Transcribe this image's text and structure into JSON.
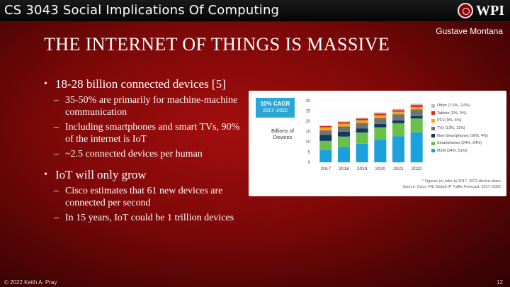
{
  "header": {
    "course_title": "CS 3043 Social Implications Of Computing",
    "logo_text": "WPI"
  },
  "author": "Gustave Montana",
  "slide_title": "THE INTERNET OF THINGS IS MASSIVE",
  "bullets": [
    {
      "text": "18-28 billion connected devices [5]",
      "sub": [
        "35-50% are primarily for machine-machine communication",
        "Including smartphones and smart TVs, 90% of the internet is IoT",
        "~2.5 connected devices per human"
      ]
    },
    {
      "text": "IoT will only grow",
      "sub": [
        "Cisco estimates that 61 new devices are connected per second",
        "In 15 years, IoT could be 1 trillion devices"
      ]
    }
  ],
  "chart_data": {
    "type": "bar",
    "stacked": true,
    "badge": {
      "line1": "10% CAGR",
      "line2": "2017–2022"
    },
    "ylabel": "Billions of Devices",
    "ylim": [
      0,
      30
    ],
    "yticks": [
      0,
      5,
      10,
      15,
      20,
      25,
      30
    ],
    "categories": [
      "2017",
      "2018",
      "2019",
      "2020",
      "2021",
      "2022"
    ],
    "series": [
      {
        "name": "M2M (34%, 51%)",
        "color": "#1ba1dd",
        "values": [
          6.1,
          7.5,
          9.0,
          11.0,
          12.6,
          14.6
        ]
      },
      {
        "name": "Smartphones (24%, 24%)",
        "color": "#6cc04a",
        "values": [
          4.3,
          5.0,
          5.5,
          6.0,
          6.4,
          6.7
        ]
      },
      {
        "name": "Non-Smartphones (16%, 4%)",
        "color": "#0e3a5e",
        "values": [
          2.9,
          2.4,
          2.0,
          1.7,
          1.4,
          1.2
        ]
      },
      {
        "name": "TVs (13%, 11%)",
        "color": "#737373",
        "values": [
          2.2,
          2.5,
          2.7,
          2.9,
          3.0,
          3.2
        ]
      },
      {
        "name": "PCs (9%, 4%)",
        "color": "#f4a61d",
        "values": [
          1.5,
          1.4,
          1.3,
          1.3,
          1.2,
          1.2
        ]
      },
      {
        "name": "Tablets (3%, 3%)",
        "color": "#e2231a",
        "values": [
          0.6,
          0.7,
          0.7,
          0.8,
          0.8,
          0.9
        ]
      },
      {
        "name": "Other (1.6%, 2.6%)",
        "color": "#bdbdbd",
        "values": [
          0.3,
          0.4,
          0.5,
          0.6,
          0.6,
          0.7
        ]
      }
    ],
    "notes": [
      "* Figures (n) refer to 2017, 2022 device share",
      "Source: Cisco VNI Global IP Traffic Forecast, 2017–2022"
    ]
  },
  "footer": {
    "copyright": "© 2022 Keith A. Pray",
    "page_number": "12"
  }
}
